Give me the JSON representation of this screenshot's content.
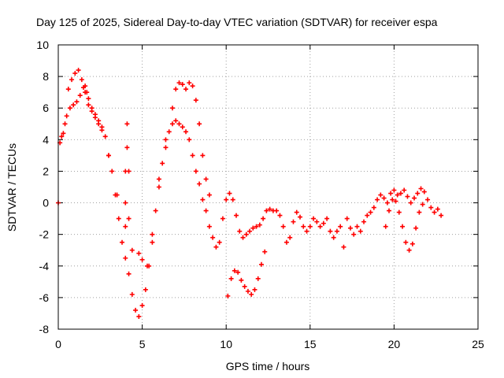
{
  "chart_data": {
    "type": "scatter",
    "title": "Day 125 of 2025, Sidereal Day-to-day VTEC variation (SDTVAR) for receiver espa",
    "xlabel": "GPS time / hours",
    "ylabel": "SDTVAR / TECUs",
    "xlim": [
      0,
      25
    ],
    "ylim": [
      -8,
      10
    ],
    "xticks": [
      0,
      5,
      10,
      15,
      20,
      25
    ],
    "yticks": [
      -8,
      -6,
      -4,
      -2,
      0,
      2,
      4,
      6,
      8,
      10
    ],
    "grid": true,
    "marker": "+",
    "color": "#ff0000",
    "series": [
      {
        "name": "main trace",
        "x": [
          0.0,
          0.1,
          0.2,
          0.3,
          0.4,
          0.5,
          0.7,
          0.9,
          1.1,
          1.3,
          1.5,
          1.6,
          1.7,
          1.8,
          2.0,
          2.2,
          2.4,
          2.6,
          2.8,
          3.0,
          3.2,
          3.4,
          3.6,
          3.8,
          4.0,
          4.2,
          4.4,
          4.6,
          4.8,
          5.0,
          5.2,
          5.4,
          5.6,
          5.8,
          6.0,
          6.2,
          6.4,
          6.6,
          6.8,
          7.0,
          7.2,
          7.4,
          7.6,
          7.8,
          8.0,
          8.2,
          8.4,
          8.6,
          8.8,
          9.0,
          9.2,
          9.4,
          9.6,
          9.8,
          10.0,
          10.2,
          10.4,
          10.6,
          10.8,
          11.0,
          11.2,
          11.4,
          11.6,
          11.8,
          12.0,
          12.2,
          12.4,
          12.6,
          12.8,
          13.0,
          13.2,
          13.4,
          13.6,
          13.8,
          14.0,
          14.2,
          14.4,
          14.6,
          14.8,
          15.0,
          15.2,
          15.4,
          15.6,
          15.8,
          16.0,
          16.2,
          16.4,
          16.6,
          16.8,
          17.0,
          17.2,
          17.4,
          17.6,
          17.8,
          18.0,
          18.2,
          18.4,
          18.6,
          18.8,
          19.0,
          19.2,
          19.4,
          19.6,
          19.8,
          20.0,
          20.2,
          20.4,
          20.6,
          20.8,
          21.0,
          21.2,
          21.4,
          21.6,
          21.8,
          22.0,
          22.2,
          22.4,
          22.6,
          22.8
        ],
        "y": [
          0.0,
          3.8,
          4.2,
          4.4,
          5.0,
          5.5,
          6.0,
          6.2,
          6.4,
          6.8,
          7.3,
          7.4,
          7.0,
          6.6,
          6.0,
          5.6,
          5.2,
          4.8,
          4.2,
          3.0,
          2.0,
          0.5,
          -1.0,
          -2.5,
          -3.5,
          -4.5,
          -5.8,
          -6.8,
          -7.2,
          -6.5,
          -5.5,
          -4.0,
          -2.5,
          -0.5,
          1.0,
          2.5,
          3.5,
          4.5,
          5.0,
          5.2,
          5.0,
          4.8,
          4.5,
          4.0,
          3.0,
          2.0,
          1.2,
          0.2,
          -0.5,
          -1.5,
          -2.2,
          -2.8,
          -2.5,
          -1.0,
          0.2,
          0.6,
          0.2,
          -0.8,
          -1.8,
          -2.2,
          -2.0,
          -1.8,
          -1.6,
          -1.5,
          -1.4,
          -1.0,
          -0.5,
          -0.4,
          -0.5,
          -0.5,
          -0.8,
          -1.5,
          -2.5,
          -2.2,
          -1.2,
          -0.6,
          -0.9,
          -1.5,
          -1.8,
          -1.5,
          -1.0,
          -1.2,
          -1.5,
          -1.3,
          -1.0,
          -1.8,
          -2.2,
          -1.8,
          -1.5,
          -2.8,
          -1.0,
          -1.6,
          -2.0,
          -1.5,
          -1.8,
          -1.2,
          -0.8,
          -0.6,
          -0.3,
          0.2,
          0.5,
          0.3,
          0.0,
          0.6,
          0.8,
          0.5,
          0.6,
          0.8,
          0.4,
          0.0,
          0.3,
          0.6,
          0.9,
          0.7,
          0.2,
          -0.3,
          -0.6,
          -0.4,
          -0.8
        ]
      },
      {
        "name": "upper trace",
        "x": [
          0.6,
          0.8,
          1.0,
          1.2,
          1.4,
          1.6,
          1.8,
          2.0,
          2.2,
          2.4,
          2.6,
          3.0,
          3.5,
          4.0,
          4.4,
          4.8,
          5.0,
          5.3,
          5.6,
          6.0,
          6.4,
          6.8,
          7.0,
          7.2,
          7.4,
          7.6,
          7.8,
          8.0,
          8.2,
          8.4,
          8.6,
          8.8,
          9.0
        ],
        "y": [
          7.2,
          7.8,
          8.2,
          8.4,
          7.8,
          7.0,
          6.2,
          5.8,
          5.4,
          5.0,
          4.6,
          3.0,
          0.5,
          -1.5,
          -3.0,
          -3.2,
          -3.6,
          -4.0,
          -2.0,
          1.5,
          4.0,
          6.0,
          7.2,
          7.6,
          7.5,
          7.2,
          7.6,
          7.4,
          6.5,
          5.0,
          3.0,
          1.5,
          0.5
        ]
      },
      {
        "name": "spike",
        "x": [
          4.0,
          4.0,
          4.1,
          4.1,
          4.2,
          4.2
        ],
        "y": [
          0.0,
          2.0,
          3.5,
          5.0,
          2.0,
          -1.0
        ]
      },
      {
        "name": "lower trace",
        "x": [
          10.1,
          10.3,
          10.5,
          10.7,
          10.9,
          11.1,
          11.3,
          11.5,
          11.7,
          11.9,
          12.1,
          12.3
        ],
        "y": [
          -5.9,
          -4.8,
          -4.3,
          -4.4,
          -4.9,
          -5.3,
          -5.6,
          -5.8,
          -5.5,
          -4.8,
          -3.9,
          -3.1
        ]
      },
      {
        "name": "late loop",
        "x": [
          19.5,
          19.7,
          19.9,
          20.1,
          20.3,
          20.5,
          20.7,
          20.9,
          21.1,
          21.3,
          21.5,
          21.7
        ],
        "y": [
          -1.5,
          -0.5,
          0.2,
          0.1,
          -0.6,
          -1.5,
          -2.5,
          -3.0,
          -2.6,
          -1.6,
          -0.6,
          -0.1
        ]
      }
    ]
  }
}
